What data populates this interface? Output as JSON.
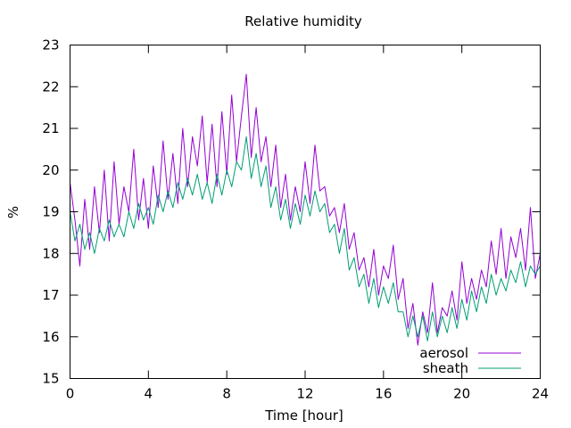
{
  "chart_data": {
    "type": "line",
    "title": "Relative humidity",
    "xlabel": "Time [hour]",
    "ylabel": "%",
    "xlim": [
      0,
      24
    ],
    "ylim": [
      15,
      23
    ],
    "xticks": [
      0,
      4,
      8,
      12,
      16,
      20,
      24
    ],
    "yticks": [
      15,
      16,
      17,
      18,
      19,
      20,
      21,
      22,
      23
    ],
    "grid": false,
    "legend_position": "bottom-right",
    "series": [
      {
        "name": "aerosol",
        "color": "#9400d3",
        "x": [
          0,
          0.25,
          0.5,
          0.75,
          1,
          1.25,
          1.5,
          1.75,
          2,
          2.25,
          2.5,
          2.75,
          3,
          3.25,
          3.5,
          3.75,
          4,
          4.25,
          4.5,
          4.75,
          5,
          5.25,
          5.5,
          5.75,
          6,
          6.25,
          6.5,
          6.75,
          7,
          7.25,
          7.5,
          7.75,
          8,
          8.25,
          8.5,
          8.75,
          9,
          9.25,
          9.5,
          9.75,
          10,
          10.25,
          10.5,
          10.75,
          11,
          11.25,
          11.5,
          11.75,
          12,
          12.25,
          12.5,
          12.75,
          13,
          13.25,
          13.5,
          13.75,
          14,
          14.25,
          14.5,
          14.75,
          15,
          15.25,
          15.5,
          15.75,
          16,
          16.25,
          16.5,
          16.75,
          17,
          17.25,
          17.5,
          17.75,
          18,
          18.25,
          18.5,
          18.75,
          19,
          19.25,
          19.5,
          19.75,
          20,
          20.25,
          20.5,
          20.75,
          21,
          21.25,
          21.5,
          21.75,
          22,
          22.25,
          22.5,
          22.75,
          23,
          23.25,
          23.5,
          23.75,
          24
        ],
        "values": [
          19.7,
          18.8,
          17.7,
          19.3,
          18.1,
          19.6,
          18.5,
          20.0,
          18.3,
          20.2,
          18.7,
          19.6,
          19.0,
          20.5,
          18.8,
          19.8,
          18.6,
          20.1,
          19.1,
          20.7,
          19.3,
          20.4,
          19.2,
          21.0,
          19.6,
          20.8,
          20.1,
          21.3,
          19.7,
          21.1,
          19.6,
          21.4,
          19.9,
          21.8,
          20.2,
          21.3,
          22.3,
          20.3,
          21.5,
          20.2,
          20.8,
          19.6,
          20.6,
          19.1,
          19.9,
          18.8,
          19.6,
          19.0,
          20.2,
          19.2,
          20.6,
          19.5,
          19.6,
          18.9,
          19.1,
          18.5,
          19.2,
          18.1,
          18.5,
          17.6,
          17.9,
          17.2,
          18.1,
          17.0,
          17.7,
          17.4,
          18.2,
          16.9,
          17.4,
          16.2,
          16.8,
          15.8,
          16.6,
          16.1,
          17.3,
          16.1,
          16.7,
          16.5,
          17.1,
          16.4,
          17.8,
          16.8,
          17.4,
          16.9,
          17.6,
          17.2,
          18.3,
          17.5,
          18.6,
          17.4,
          18.4,
          17.9,
          18.6,
          17.6,
          19.1,
          17.4,
          18.0
        ],
        "count": 97
      },
      {
        "name": "sheath",
        "color": "#009e73",
        "x": [
          0,
          0.25,
          0.5,
          0.75,
          1,
          1.25,
          1.5,
          1.75,
          2,
          2.25,
          2.5,
          2.75,
          3,
          3.25,
          3.5,
          3.75,
          4,
          4.25,
          4.5,
          4.75,
          5,
          5.25,
          5.5,
          5.75,
          6,
          6.25,
          6.5,
          6.75,
          7,
          7.25,
          7.5,
          7.75,
          8,
          8.25,
          8.5,
          8.75,
          9,
          9.25,
          9.5,
          9.75,
          10,
          10.25,
          10.5,
          10.75,
          11,
          11.25,
          11.5,
          11.75,
          12,
          12.25,
          12.5,
          12.75,
          13,
          13.25,
          13.5,
          13.75,
          14,
          14.25,
          14.5,
          14.75,
          15,
          15.25,
          15.5,
          15.75,
          16,
          16.25,
          16.5,
          16.75,
          17,
          17.25,
          17.5,
          17.75,
          18,
          18.25,
          18.5,
          18.75,
          19,
          19.25,
          19.5,
          19.75,
          20,
          20.25,
          20.5,
          20.75,
          21,
          21.25,
          21.5,
          21.75,
          22,
          22.25,
          22.5,
          22.75,
          23,
          23.25,
          23.5,
          23.75,
          24
        ],
        "values": [
          19.0,
          18.3,
          18.7,
          18.1,
          18.5,
          18.0,
          18.6,
          18.3,
          18.8,
          18.4,
          18.7,
          18.4,
          19.0,
          18.6,
          19.2,
          18.8,
          19.1,
          18.7,
          19.4,
          19.0,
          19.5,
          19.1,
          19.7,
          19.3,
          19.8,
          19.4,
          19.9,
          19.3,
          19.7,
          19.2,
          19.9,
          19.4,
          20.0,
          19.6,
          20.2,
          20.0,
          20.8,
          19.8,
          20.4,
          19.6,
          20.1,
          19.1,
          19.6,
          18.8,
          19.3,
          18.6,
          19.2,
          18.7,
          19.4,
          18.9,
          19.5,
          19.0,
          19.2,
          18.5,
          18.7,
          18.0,
          18.6,
          17.6,
          17.9,
          17.2,
          17.5,
          16.8,
          17.4,
          16.7,
          17.2,
          16.8,
          17.3,
          16.6,
          16.6,
          16.0,
          16.5,
          16.0,
          16.5,
          15.9,
          16.6,
          16.0,
          16.5,
          16.1,
          16.7,
          16.2,
          16.9,
          16.4,
          17.1,
          16.6,
          17.2,
          16.8,
          17.5,
          17.0,
          17.4,
          17.1,
          17.6,
          17.3,
          17.8,
          17.2,
          17.7,
          17.5,
          17.7
        ],
        "count": 97
      }
    ]
  }
}
